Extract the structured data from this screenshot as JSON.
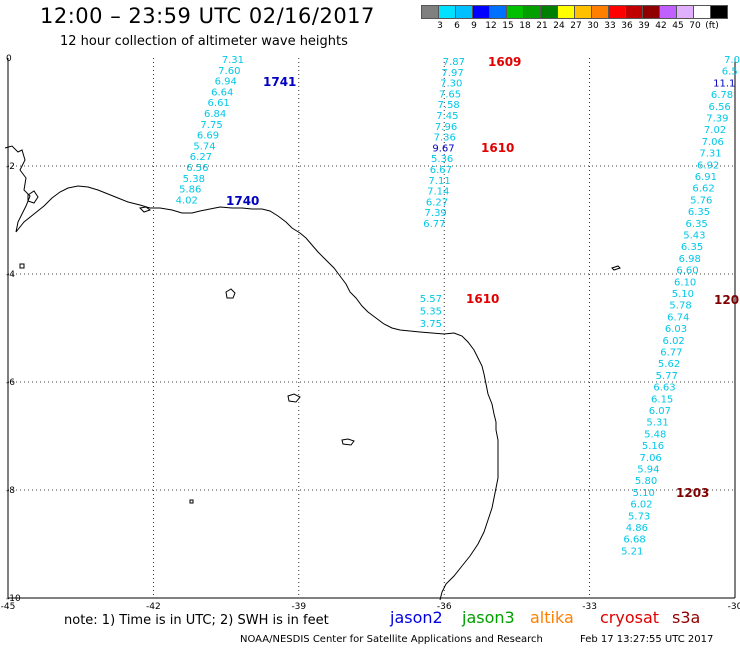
{
  "title": "12:00 – 23:59 UTC 02/16/2017",
  "subtitle": "12 hour collection of altimeter wave heights",
  "legend": {
    "colors": [
      "#808080",
      "#00e0ff",
      "#00c0ff",
      "#0000ff",
      "#0070ff",
      "#00c000",
      "#00a000",
      "#008000",
      "#ffff00",
      "#ffc000",
      "#ff8000",
      "#ff0000",
      "#c00000",
      "#900000",
      "#c060ff",
      "#e0b0ff",
      "#ffffff",
      "#000000"
    ],
    "labels": [
      "3",
      "6",
      "9",
      "12",
      "15",
      "18",
      "21",
      "24",
      "27",
      "30",
      "33",
      "36",
      "39",
      "42",
      "45",
      "70",
      "(ft)"
    ]
  },
  "map": {
    "lon_ticks": [
      "-45",
      "-42",
      "-39",
      "-36",
      "-33",
      "-30"
    ],
    "lat_ticks": [
      "0",
      "-2",
      "-4",
      "-6",
      "-8",
      "-10"
    ],
    "tracks": [
      {
        "name": "track-1741",
        "color": "#00c8e8",
        "values": [
          "7.31",
          "7.60",
          "6.94",
          "6.64",
          "6.61",
          "6.84",
          "7.75",
          "6.69",
          "5.74",
          "6.27",
          "6.56",
          "5.38",
          "5.86",
          "4.02"
        ],
        "labels": [
          {
            "text": "1741",
            "color": "#0000c0"
          },
          {
            "text": "1740",
            "color": "#0000c0"
          }
        ]
      },
      {
        "name": "track-1609",
        "color": "#00c8e8",
        "values": [
          "7.87",
          "7.97",
          "7.30",
          "7.65",
          "7.58",
          "7.45",
          "7.96",
          "7.36",
          "9.67",
          "5.36",
          "6.67",
          "7.11",
          "7.14",
          "6.27",
          "7.39",
          "6.77"
        ],
        "highlight_index": 8,
        "highlight_color": "#0000c0",
        "labels": [
          {
            "text": "1609",
            "color": "#e00000"
          },
          {
            "text": "1610",
            "color": "#e00000"
          }
        ]
      },
      {
        "name": "track-1610b",
        "color": "#00c8e8",
        "values": [
          "5.57",
          "5.35",
          "3.75"
        ],
        "labels": [
          {
            "text": "1610",
            "color": "#e00000"
          }
        ]
      },
      {
        "name": "track-1203",
        "color": "#00c8e8",
        "values": [
          "7.0",
          "6.5",
          "11.1",
          "6.78",
          "6.56",
          "7.39",
          "7.02",
          "7.06",
          "7.31",
          "6.92",
          "6.91",
          "6.62",
          "5.76",
          "6.35",
          "6.35",
          "5.43",
          "6.35",
          "6.98",
          "6.60",
          "6.10",
          "5.10",
          "5.78",
          "6.74",
          "6.03",
          "6.02",
          "6.77",
          "5.62",
          "5.77",
          "6.63",
          "6.15",
          "6.07",
          "5.31",
          "5.48",
          "5.16",
          "7.06",
          "5.94",
          "5.80",
          "5.10",
          "6.02",
          "5.73",
          "4.86",
          "6.68",
          "5.21"
        ],
        "highlight_index": 2,
        "highlight_color": "#0000c0",
        "labels": [
          {
            "text": "120",
            "color": "#800000"
          },
          {
            "text": "1203",
            "color": "#800000"
          }
        ]
      }
    ]
  },
  "note": "note: 1) Time is in UTC; 2) SWH is in feet",
  "satellites": [
    {
      "name": "jason2",
      "color": "#0000e0"
    },
    {
      "name": "jason3",
      "color": "#00a000"
    },
    {
      "name": "altika",
      "color": "#ff8000"
    },
    {
      "name": "cryosat",
      "color": "#e00000"
    },
    {
      "name": "s3a",
      "color": "#900000"
    }
  ],
  "credit": "NOAA/NESDIS Center for Satellite Applications and Research",
  "timestamp": "Feb 17 13:27:55 UTC 2017"
}
